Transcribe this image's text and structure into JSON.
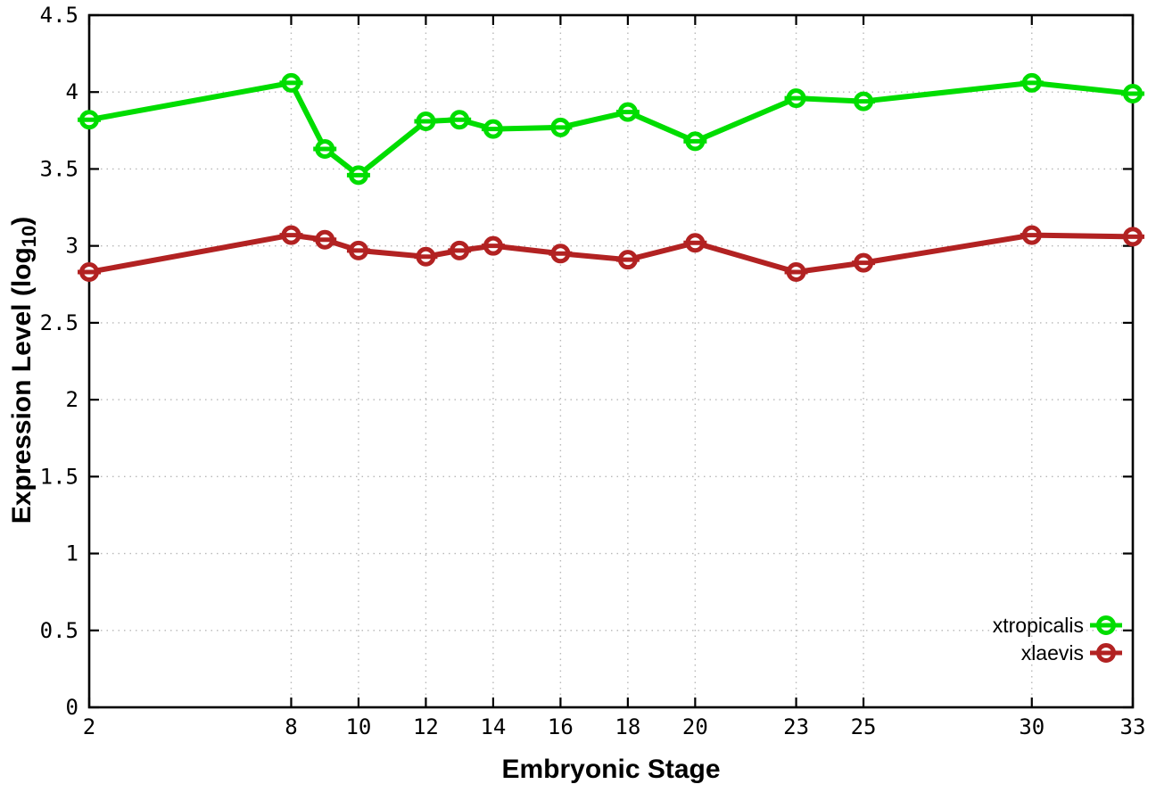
{
  "chart_data": {
    "type": "line",
    "title": "",
    "xlabel": "Embryonic Stage",
    "ylabel": "Expression Level (log10)",
    "ylabel_parts": {
      "base": "Expression Level (log",
      "sub": "10",
      "close": ")"
    },
    "xlim": [
      2,
      33
    ],
    "ylim": [
      0,
      4.5
    ],
    "grid": "dotted",
    "legend_position": "inside-bottom-right",
    "x_tick_values": [
      2,
      8,
      10,
      12,
      14,
      16,
      18,
      20,
      23,
      25,
      30,
      33
    ],
    "x_tick_labels": [
      "2",
      "8",
      "10",
      "12",
      "14",
      "16",
      "18",
      "20",
      "23",
      "25",
      "30",
      "33"
    ],
    "y_tick_values": [
      0,
      0.5,
      1,
      1.5,
      2,
      2.5,
      3,
      3.5,
      4,
      4.5
    ],
    "y_tick_labels": [
      "0",
      "0.5",
      "1",
      "1.5",
      "2",
      "2.5",
      "3",
      "3.5",
      "4",
      "4.5"
    ],
    "x": [
      2,
      8,
      9,
      10,
      12,
      13,
      14,
      16,
      18,
      20,
      23,
      25,
      30,
      33
    ],
    "series": [
      {
        "name": "xtropicalis",
        "color": "#00dd00",
        "marker": "open-circle-errorbar",
        "values": [
          3.82,
          4.06,
          3.63,
          3.46,
          3.81,
          3.82,
          3.76,
          3.77,
          3.87,
          3.68,
          3.96,
          3.94,
          4.06,
          3.99
        ]
      },
      {
        "name": "xlaevis",
        "color": "#b22222",
        "marker": "open-circle-errorbar",
        "values": [
          2.83,
          3.07,
          3.04,
          2.97,
          2.93,
          2.97,
          3.0,
          2.95,
          2.91,
          3.02,
          2.83,
          2.89,
          3.07,
          3.06
        ]
      }
    ]
  },
  "colors": {
    "background": "#ffffff",
    "axis": "#000000",
    "grid": "#b8b8b8",
    "tick_text": "#000000",
    "xtropicalis": "#00dd00",
    "xlaevis": "#b22222"
  }
}
